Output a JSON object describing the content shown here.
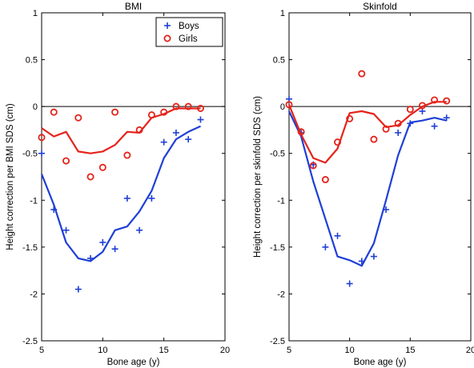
{
  "chart_data": [
    {
      "type": "line",
      "title": "BMI",
      "xlabel": "Bone age (y)",
      "ylabel": "Height correction per BMI SDS (cm)",
      "xlim": [
        5,
        20
      ],
      "ylim": [
        -2.5,
        1
      ],
      "xticks": [
        "5",
        "10",
        "15",
        "20"
      ],
      "yticks": [
        "1",
        "0.5",
        "0",
        "-0.5",
        "-1",
        "-1.5",
        "-2",
        "-2.5"
      ],
      "reference_line_y": 0,
      "legend": {
        "position": "top-right",
        "entries": [
          "Boys",
          "Girls"
        ]
      },
      "series": [
        {
          "name": "Boys",
          "color": "#1f3fd6",
          "marker": "plus",
          "points_x": [
            5,
            6,
            7,
            8,
            9,
            10,
            11,
            12,
            13,
            14,
            15,
            16,
            17,
            18
          ],
          "points_y": [
            -0.5,
            -1.1,
            -1.32,
            -1.95,
            -1.62,
            -1.45,
            -1.52,
            -0.98,
            -1.32,
            -0.98,
            -0.38,
            -0.28,
            -0.35,
            -0.14
          ],
          "line_x": [
            5,
            6,
            7,
            8,
            9,
            10,
            11,
            12,
            13,
            14,
            15,
            16,
            17,
            18
          ],
          "line_y": [
            -0.72,
            -1.05,
            -1.45,
            -1.62,
            -1.65,
            -1.55,
            -1.32,
            -1.28,
            -1.12,
            -0.9,
            -0.55,
            -0.35,
            -0.27,
            -0.21
          ]
        },
        {
          "name": "Girls",
          "color": "#e5231b",
          "marker": "circle",
          "points_x": [
            5,
            6,
            7,
            8,
            9,
            10,
            11,
            12,
            13,
            14,
            15,
            16,
            17,
            18
          ],
          "points_y": [
            -0.33,
            -0.06,
            -0.58,
            -0.12,
            -0.75,
            -0.65,
            -0.06,
            -0.52,
            -0.25,
            -0.09,
            -0.06,
            0.0,
            0.0,
            -0.02
          ],
          "line_x": [
            5,
            6,
            7,
            8,
            9,
            10,
            11,
            12,
            13,
            14,
            15,
            16,
            17,
            18
          ],
          "line_y": [
            -0.23,
            -0.32,
            -0.27,
            -0.48,
            -0.5,
            -0.48,
            -0.41,
            -0.27,
            -0.28,
            -0.12,
            -0.08,
            -0.02,
            -0.02,
            -0.02
          ]
        }
      ]
    },
    {
      "type": "line",
      "title": "Skinfold",
      "xlabel": "Bone age (y)",
      "ylabel": "Height correction per skinfold SDS (cm)",
      "xlim": [
        5,
        20
      ],
      "ylim": [
        -2.5,
        1
      ],
      "xticks": [
        "5",
        "10",
        "15",
        "20"
      ],
      "yticks": [
        "1",
        "0.5",
        "0",
        "-0.5",
        "-1",
        "-1.5",
        "-2",
        "-2.5"
      ],
      "reference_line_y": 0,
      "series": [
        {
          "name": "Boys",
          "color": "#1f3fd6",
          "marker": "plus",
          "points_x": [
            5,
            6,
            7,
            8,
            9,
            10,
            11,
            12,
            13,
            14,
            15,
            16,
            17,
            18
          ],
          "points_y": [
            0.08,
            -0.28,
            -0.62,
            -1.5,
            -1.38,
            -1.89,
            -1.65,
            -1.6,
            -1.1,
            -0.28,
            -0.18,
            -0.05,
            -0.21,
            -0.12
          ],
          "line_x": [
            5,
            6,
            7,
            8,
            9,
            10,
            11,
            12,
            13,
            14,
            15,
            16,
            17,
            18
          ],
          "line_y": [
            -0.05,
            -0.32,
            -0.8,
            -1.2,
            -1.6,
            -1.64,
            -1.7,
            -1.46,
            -1.0,
            -0.52,
            -0.17,
            -0.15,
            -0.12,
            -0.15
          ]
        },
        {
          "name": "Girls",
          "color": "#e5231b",
          "marker": "circle",
          "points_x": [
            5,
            6,
            7,
            8,
            9,
            10,
            11,
            12,
            13,
            14,
            15,
            16,
            17,
            18
          ],
          "points_y": [
            0.02,
            -0.27,
            -0.63,
            -0.78,
            -0.38,
            -0.13,
            0.35,
            -0.35,
            -0.24,
            -0.18,
            -0.03,
            0.01,
            0.07,
            0.06
          ],
          "line_x": [
            5,
            6,
            7,
            8,
            9,
            10,
            11,
            12,
            13,
            14,
            15,
            16,
            17,
            18
          ],
          "line_y": [
            0.02,
            -0.3,
            -0.55,
            -0.6,
            -0.45,
            -0.07,
            -0.05,
            -0.08,
            -0.22,
            -0.2,
            -0.09,
            0.0,
            0.05,
            0.05
          ]
        }
      ]
    }
  ]
}
